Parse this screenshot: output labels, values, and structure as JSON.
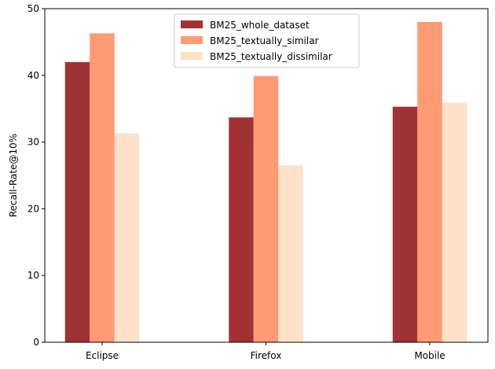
{
  "chart_data": {
    "type": "bar",
    "title": "",
    "xlabel": "",
    "ylabel": "Recall-Rate@10%",
    "categories": [
      "Eclipse",
      "Firefox",
      "Mobile"
    ],
    "ylim": [
      0,
      50
    ],
    "yticks": [
      0,
      10,
      20,
      30,
      40,
      50
    ],
    "grid": false,
    "legend_position": "top-center",
    "series": [
      {
        "name": "BM25_whole_dataset",
        "color": "#a03234",
        "values": [
          42.0,
          33.7,
          35.3
        ]
      },
      {
        "name": "BM25_textually_similar",
        "color": "#fe9a74",
        "values": [
          46.3,
          39.9,
          48.0
        ]
      },
      {
        "name": "BM25_textually_dissimilar",
        "color": "#fee1c8",
        "values": [
          31.3,
          26.5,
          35.9
        ]
      }
    ]
  }
}
